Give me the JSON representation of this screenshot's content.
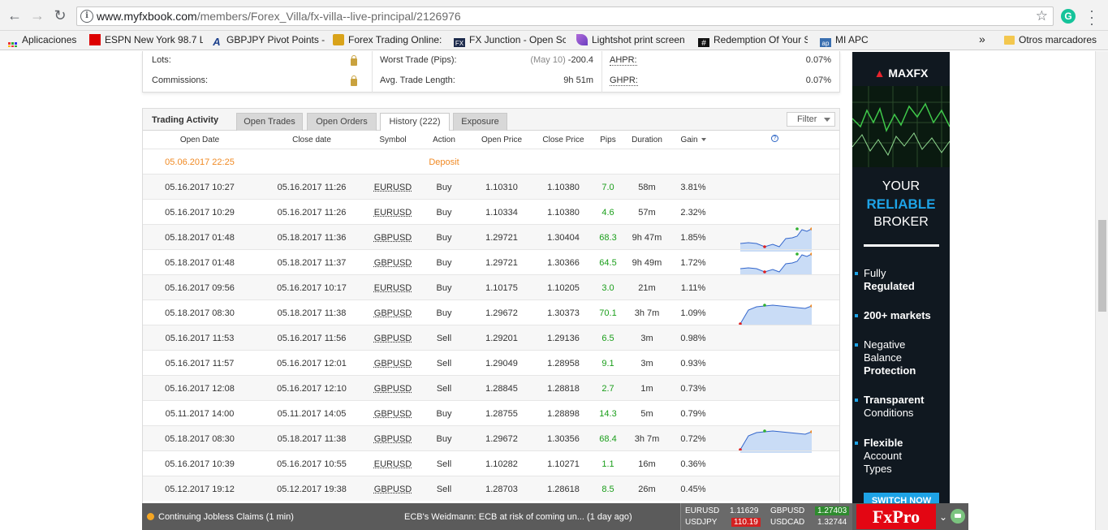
{
  "browser": {
    "url_host": "www.myfxbook.com",
    "url_path": "/members/Forex_Villa/fx-villa--live-principal/2126976",
    "bookmarks": [
      {
        "label": "Aplicaciones",
        "icon": "apps-grid-icon"
      },
      {
        "label": "ESPN New York 98.7 L",
        "icon": "espn-icon"
      },
      {
        "label": "GBPJPY Pivot Points -",
        "icon": "site-a-icon"
      },
      {
        "label": "Forex Trading Online:",
        "icon": "forex-cube-icon"
      },
      {
        "label": "FX Junction - Open Sc",
        "icon": "fx-junction-icon"
      },
      {
        "label": "Lightshot print screen",
        "icon": "feather-icon"
      },
      {
        "label": "Redemption Of Your S",
        "icon": "redemption-icon"
      },
      {
        "label": "MI APC",
        "icon": "apc-icon"
      }
    ],
    "overflow": "»",
    "other_bookmarks": "Otros marcadores"
  },
  "stats": {
    "lots_label": "Lots:",
    "commissions_label": "Commissions:",
    "worst_trade_label": "Worst Trade (Pips):",
    "worst_trade_date": "(May 10)",
    "worst_trade_value": "-200.4",
    "avg_length_label": "Avg. Trade Length:",
    "avg_length_value": "9h 51m",
    "ahpr_label": "AHPR:",
    "ahpr_value": "0.07%",
    "ghpr_label": "GHPR:",
    "ghpr_value": "0.07%"
  },
  "activity": {
    "title": "Trading Activity",
    "tabs": [
      "Open Trades",
      "Open Orders",
      "History (222)",
      "Exposure"
    ],
    "filter": "Filter",
    "headers": [
      "Open Date",
      "Close date",
      "Symbol",
      "Action",
      "Open Price",
      "Close Price",
      "Pips",
      "Duration",
      "Gain"
    ],
    "help": "?",
    "deposit_row": {
      "open_date": "05.06.2017 22:25",
      "action": "Deposit"
    },
    "rows": [
      {
        "open": "05.16.2017 10:27",
        "close": "05.16.2017 11:26",
        "symbol": "EURUSD",
        "action": "Buy",
        "open_price": "1.10310",
        "close_price": "1.10380",
        "pips": "7.0",
        "duration": "58m",
        "gain": "3.81%",
        "spark": ""
      },
      {
        "open": "05.16.2017 10:29",
        "close": "05.16.2017 11:26",
        "symbol": "EURUSD",
        "action": "Buy",
        "open_price": "1.10334",
        "close_price": "1.10380",
        "pips": "4.6",
        "duration": "57m",
        "gain": "2.32%",
        "spark": ""
      },
      {
        "open": "05.18.2017 01:48",
        "close": "05.18.2017 11:36",
        "symbol": "GBPUSD",
        "action": "Buy",
        "open_price": "1.29721",
        "close_price": "1.30404",
        "pips": "68.3",
        "duration": "9h 47m",
        "gain": "1.85%",
        "spark": "a"
      },
      {
        "open": "05.18.2017 01:48",
        "close": "05.18.2017 11:37",
        "symbol": "GBPUSD",
        "action": "Buy",
        "open_price": "1.29721",
        "close_price": "1.30366",
        "pips": "64.5",
        "duration": "9h 49m",
        "gain": "1.72%",
        "spark": "a"
      },
      {
        "open": "05.16.2017 09:56",
        "close": "05.16.2017 10:17",
        "symbol": "EURUSD",
        "action": "Buy",
        "open_price": "1.10175",
        "close_price": "1.10205",
        "pips": "3.0",
        "duration": "21m",
        "gain": "1.11%",
        "spark": ""
      },
      {
        "open": "05.18.2017 08:30",
        "close": "05.18.2017 11:38",
        "symbol": "GBPUSD",
        "action": "Buy",
        "open_price": "1.29672",
        "close_price": "1.30373",
        "pips": "70.1",
        "duration": "3h 7m",
        "gain": "1.09%",
        "spark": "b"
      },
      {
        "open": "05.16.2017 11:53",
        "close": "05.16.2017 11:56",
        "symbol": "GBPUSD",
        "action": "Sell",
        "open_price": "1.29201",
        "close_price": "1.29136",
        "pips": "6.5",
        "duration": "3m",
        "gain": "0.98%",
        "spark": ""
      },
      {
        "open": "05.16.2017 11:57",
        "close": "05.16.2017 12:01",
        "symbol": "GBPUSD",
        "action": "Sell",
        "open_price": "1.29049",
        "close_price": "1.28958",
        "pips": "9.1",
        "duration": "3m",
        "gain": "0.93%",
        "spark": ""
      },
      {
        "open": "05.16.2017 12:08",
        "close": "05.16.2017 12:10",
        "symbol": "GBPUSD",
        "action": "Sell",
        "open_price": "1.28845",
        "close_price": "1.28818",
        "pips": "2.7",
        "duration": "1m",
        "gain": "0.73%",
        "spark": ""
      },
      {
        "open": "05.11.2017 14:00",
        "close": "05.11.2017 14:05",
        "symbol": "GBPUSD",
        "action": "Buy",
        "open_price": "1.28755",
        "close_price": "1.28898",
        "pips": "14.3",
        "duration": "5m",
        "gain": "0.79%",
        "spark": ""
      },
      {
        "open": "05.18.2017 08:30",
        "close": "05.18.2017 11:38",
        "symbol": "GBPUSD",
        "action": "Buy",
        "open_price": "1.29672",
        "close_price": "1.30356",
        "pips": "68.4",
        "duration": "3h 7m",
        "gain": "0.72%",
        "spark": "b"
      },
      {
        "open": "05.16.2017 10:39",
        "close": "05.16.2017 10:55",
        "symbol": "EURUSD",
        "action": "Sell",
        "open_price": "1.10282",
        "close_price": "1.10271",
        "pips": "1.1",
        "duration": "16m",
        "gain": "0.36%",
        "spark": ""
      },
      {
        "open": "05.12.2017 19:12",
        "close": "05.12.2017 19:38",
        "symbol": "GBPUSD",
        "action": "Sell",
        "open_price": "1.28703",
        "close_price": "1.28618",
        "pips": "8.5",
        "duration": "26m",
        "gain": "0.45%",
        "spark": ""
      }
    ]
  },
  "ad": {
    "brand": "MAXFX",
    "line1": "YOUR",
    "line2": "RELIABLE",
    "line3": "BROKER",
    "items": [
      {
        "a": "Fully",
        "b": "Regulated"
      },
      {
        "a": "200+ markets",
        "b": ""
      },
      {
        "a": "Negative Balance",
        "b": "Protection"
      },
      {
        "a": "Transparent",
        "b": "Conditions"
      },
      {
        "a": "Flexible",
        "b": "Account Types"
      }
    ],
    "cta": "SWITCH NOW"
  },
  "ticker": {
    "news1": "Continuing Jobless Claims (1 min)",
    "news2": "ECB's Weidmann: ECB at risk of coming un...  (1 day ago)",
    "q1_sym": "EURUSD",
    "q1_val": "1.11629",
    "q2_sym": "GBPUSD",
    "q2_val": "1.27403",
    "q3_sym": "USDJPY",
    "q3_val": "110.19",
    "q4_sym": "USDCAD",
    "q4_val": "1.32744",
    "brand": "FxPro"
  },
  "colors": {
    "pips": "#1a9e1a",
    "deposit": "#f08a24",
    "up": "#2e8b2e",
    "down": "#d42020",
    "brand_red": "#e30613"
  }
}
